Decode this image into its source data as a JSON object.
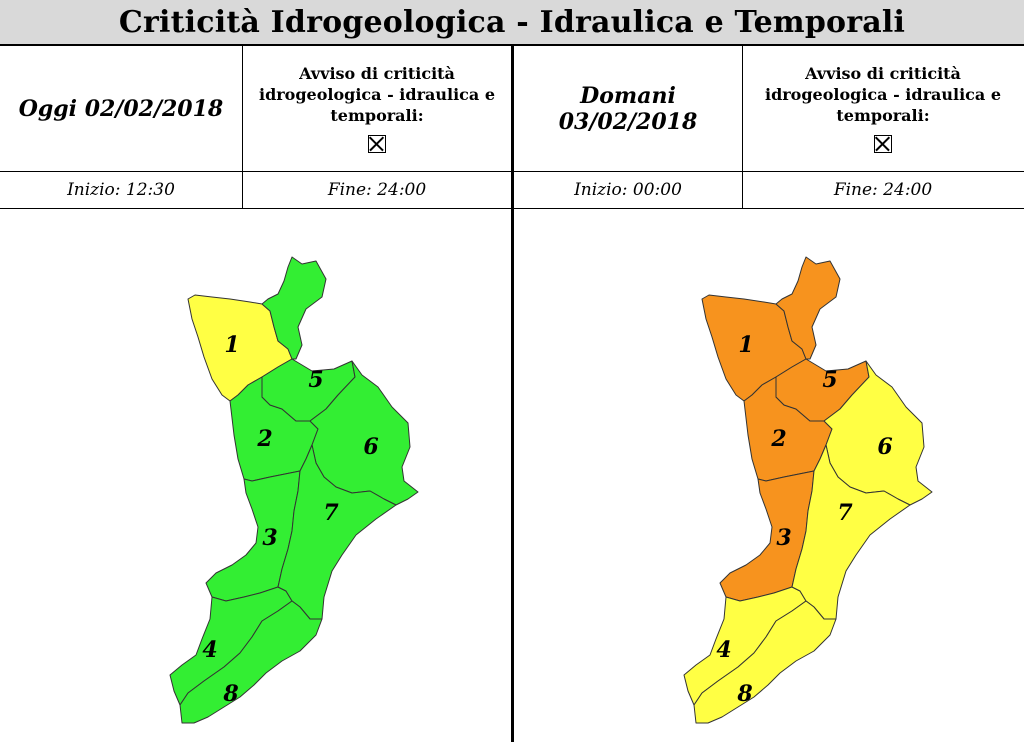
{
  "title": "Criticità Idrogeologica - Idraulica e Temporali",
  "colors": {
    "green": "#33ee33",
    "yellow": "#ffff44",
    "orange": "#f7931e",
    "border": "#333333"
  },
  "days": [
    {
      "label": "Oggi 02/02/2018",
      "avviso": [
        "Avviso di criticità",
        "idrogeologica - idraulica e",
        "temporali:"
      ],
      "checkbox_icon": "crossed-box-icon",
      "start": "Inizio: 12:30",
      "end": "Fine: 24:00",
      "zones": [
        {
          "id": "1",
          "label": "1",
          "level": "yellow"
        },
        {
          "id": "2",
          "label": "2",
          "level": "green"
        },
        {
          "id": "3",
          "label": "3",
          "level": "green"
        },
        {
          "id": "4",
          "label": "4",
          "level": "green"
        },
        {
          "id": "5",
          "label": "5",
          "level": "green"
        },
        {
          "id": "6",
          "label": "6",
          "level": "green"
        },
        {
          "id": "7",
          "label": "7",
          "level": "green"
        },
        {
          "id": "8",
          "label": "8",
          "level": "green"
        }
      ]
    },
    {
      "label": "Domani 03/02/2018",
      "avviso": [
        "Avviso di criticità",
        "idrogeologica - idraulica e",
        "temporali:"
      ],
      "checkbox_icon": "crossed-box-icon",
      "start": "Inizio: 00:00",
      "end": "Fine: 24:00",
      "zones": [
        {
          "id": "1",
          "label": "1",
          "level": "orange"
        },
        {
          "id": "2",
          "label": "2",
          "level": "orange"
        },
        {
          "id": "3",
          "label": "3",
          "level": "orange"
        },
        {
          "id": "4",
          "label": "4",
          "level": "yellow"
        },
        {
          "id": "5",
          "label": "5",
          "level": "orange"
        },
        {
          "id": "6",
          "label": "6",
          "level": "yellow"
        },
        {
          "id": "7",
          "label": "7",
          "level": "yellow"
        },
        {
          "id": "8",
          "label": "8",
          "level": "yellow"
        }
      ]
    }
  ]
}
